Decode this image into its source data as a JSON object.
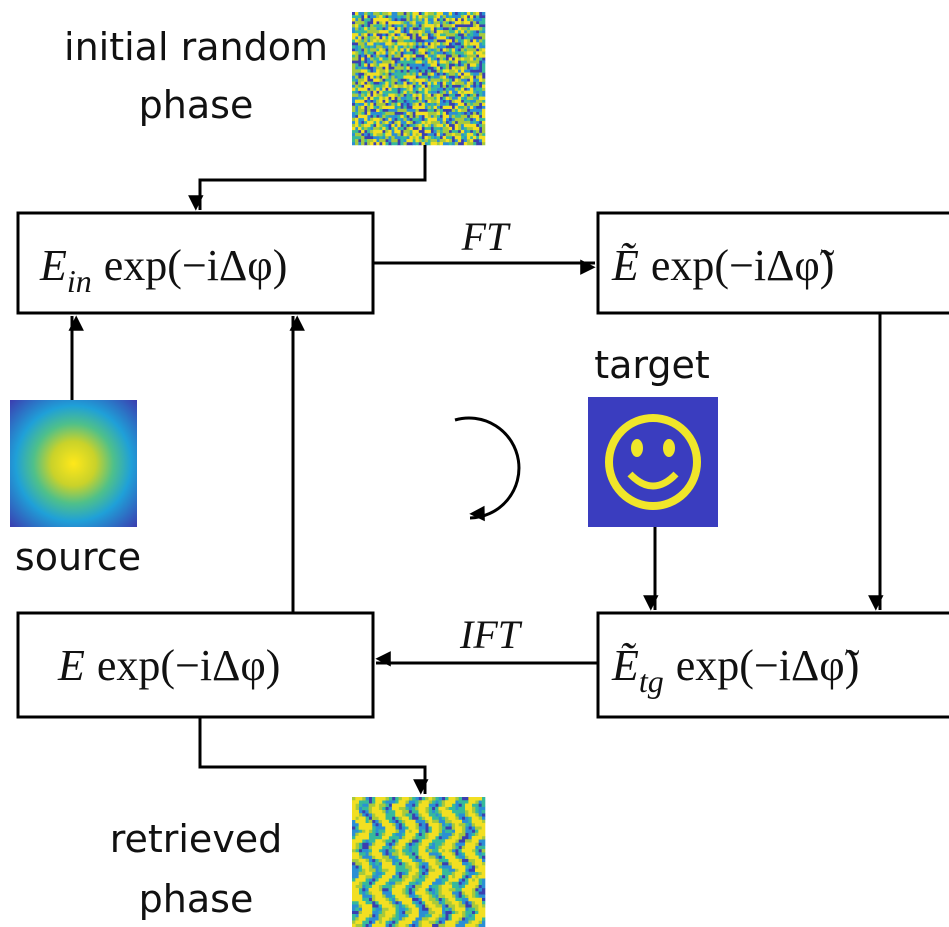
{
  "labels": {
    "initial_phase": [
      "initial random",
      "phase"
    ],
    "source": "source",
    "target": "target",
    "retrieved_phase": [
      "retrieved",
      "phase"
    ]
  },
  "edges": {
    "forward": "FT",
    "inverse": "IFT"
  },
  "boxes": [
    {
      "symbol": "E",
      "sub": "in",
      "expr": "exp(−iΔφ)"
    },
    {
      "symbol": "Ẽ",
      "expr": "exp(−iΔφ̃)"
    },
    {
      "symbol": "Ẽ",
      "sub": "tg",
      "expr": "exp(−iΔφ̃)"
    },
    {
      "symbol": "E",
      "expr": "exp(−iΔφ)"
    }
  ]
}
